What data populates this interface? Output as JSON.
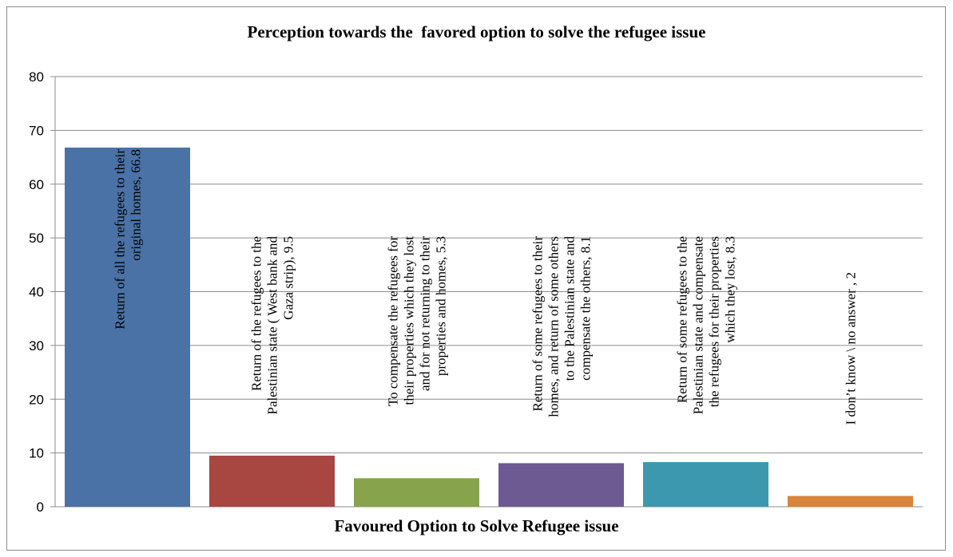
{
  "chart_data": {
    "type": "bar",
    "title": "Perception towards the  favored option to solve the refugee issue",
    "xlabel": "Favoured Option to Solve Refugee issue",
    "ylabel": "",
    "ylim": [
      0,
      80
    ],
    "yticks": [
      "0",
      "10",
      "20",
      "30",
      "40",
      "50",
      "60",
      "70",
      "80"
    ],
    "grid": true,
    "legend": "none",
    "categories": [
      "Return of all the refugees to their original homes",
      "Return of the refugees to the Palestinian state ( West bank and Gaza strip)",
      "To compensate the refugees for their properties which they lost and for not returning to their properties and homes",
      "Return of some refugees to their homes, and return of some others to the Palestinian state and compensate the others",
      "Return of some refugees to the Palestinian state and compensate the refugees for their properties which they lost",
      "I don’t know \\ no answer"
    ],
    "values": [
      66.8,
      9.5,
      5.3,
      8.1,
      8.3,
      2
    ],
    "data_labels": [
      [
        "Return of all the refugees to their",
        "original homes, 66.8"
      ],
      [
        "Return of the refugees to the",
        "Palestinian state ( West bank and",
        "Gaza strip), 9.5"
      ],
      [
        "To compensate the refugees for",
        "their properties which they lost",
        "and for not returning to their",
        "properties and homes, 5.3"
      ],
      [
        "Return of some refugees to their",
        "homes, and return of some others",
        "to the Palestinian state and",
        "compensate the others, 8.1"
      ],
      [
        "Return of some refugees to the",
        "Palestinian state and compensate",
        "the refugees for their properties",
        "which they lost, 8.3"
      ],
      [
        "I don’t know \\ no answer , 2"
      ]
    ],
    "colors": [
      "#4a72a6",
      "#a84642",
      "#87a34c",
      "#6e5a92",
      "#3c98ae",
      "#d9843c"
    ]
  }
}
